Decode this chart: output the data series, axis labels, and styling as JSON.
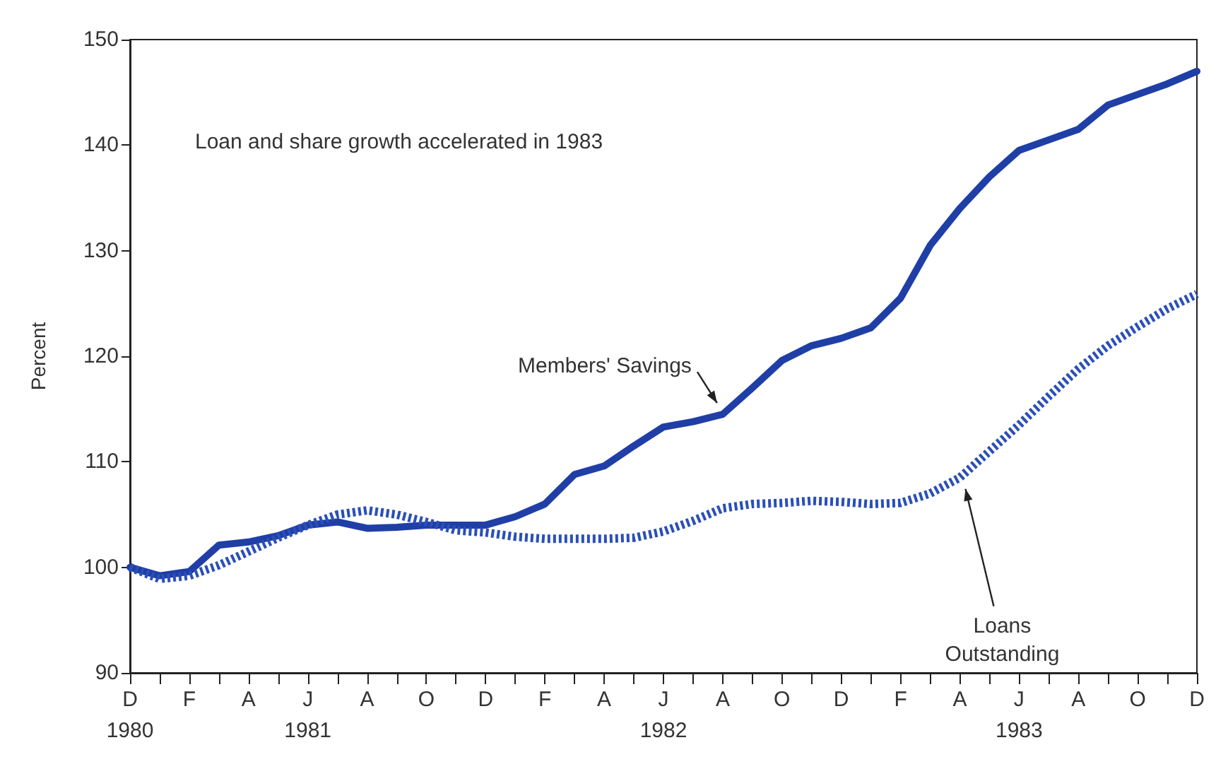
{
  "chart_data": {
    "type": "line",
    "ylabel": "Percent",
    "annotations": [
      "Loan and share growth accelerated in 1983"
    ],
    "categories": [
      "D\n1980",
      null,
      "F",
      null,
      "A",
      null,
      "J\n1981",
      null,
      "A",
      null,
      "O",
      null,
      "D",
      null,
      "F",
      null,
      "A",
      null,
      "J\n1982",
      null,
      "A",
      null,
      "O",
      null,
      "D",
      null,
      "F",
      null,
      "A",
      null,
      "J\n1983",
      null,
      "A",
      null,
      "O",
      null,
      "D"
    ],
    "series": [
      {
        "name": "Members' Savings",
        "color": "#1f3fa6",
        "line_style": "solid",
        "values": [
          100,
          99.2,
          99.6,
          102.1,
          102.4,
          103,
          104,
          104.3,
          103.7,
          103.8,
          104,
          104,
          104,
          104.8,
          106,
          108.8,
          109.6,
          111.5,
          113.3,
          113.8,
          114.5,
          117,
          119.6,
          121,
          121.7,
          122.7,
          125.5,
          130.5,
          134,
          137,
          139.5,
          140.5,
          141.5,
          143.8,
          144.8,
          145.8,
          147
        ]
      },
      {
        "name": "Loans Outstanding",
        "color": "#2a4fb8",
        "line_style": "dotted",
        "values": [
          100,
          98.9,
          99.2,
          100.2,
          101.5,
          102.8,
          104,
          105,
          105.4,
          105,
          104.3,
          103.5,
          103.3,
          102.9,
          102.7,
          102.7,
          102.7,
          102.8,
          103.4,
          104.4,
          105.6,
          106,
          106.1,
          106.3,
          106.2,
          106,
          106.1,
          107,
          108.5,
          111,
          113.5,
          116.2,
          118.8,
          121,
          122.8,
          124.5,
          125.9
        ]
      }
    ],
    "ylim": [
      90,
      150
    ],
    "yticks": [
      90,
      100,
      110,
      120,
      130,
      140,
      150
    ],
    "grid": false,
    "legend": false,
    "marker": "none"
  }
}
